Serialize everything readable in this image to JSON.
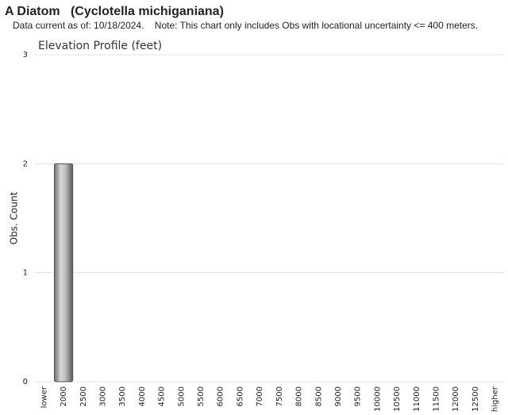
{
  "chart_data": {
    "type": "bar",
    "title": "A Diatom   (Cyclotella michiganiana)",
    "subtitle": "Data current as of: 10/18/2024.    Note: This chart only includes Obs with locational uncertainty <= 400 meters.",
    "chart_title": "Elevation Profile (feet)",
    "y_label": "Obs. Count",
    "categories": [
      "lower",
      "2000",
      "2500",
      "3000",
      "3500",
      "4000",
      "4500",
      "5000",
      "5500",
      "6000",
      "6500",
      "7000",
      "7500",
      "8000",
      "8500",
      "9000",
      "9500",
      "10000",
      "10500",
      "11000",
      "11500",
      "12000",
      "12500",
      "higher"
    ],
    "values": [
      0,
      2,
      0,
      0,
      0,
      0,
      0,
      0,
      0,
      0,
      0,
      0,
      0,
      0,
      0,
      0,
      0,
      0,
      0,
      0,
      0,
      0,
      0,
      0
    ],
    "ylim": [
      0,
      3
    ],
    "yticks": [
      0,
      1,
      2,
      3
    ],
    "grid": true
  }
}
